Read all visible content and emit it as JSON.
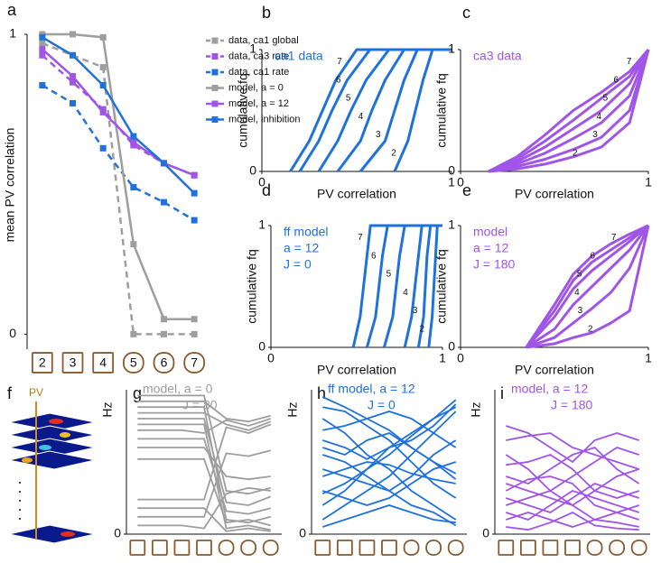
{
  "chart_data": [
    {
      "type": "line",
      "panel": "a",
      "ylabel": "mean PV correlation",
      "categories": [
        "2",
        "3",
        "4",
        "5",
        "6",
        "7"
      ],
      "ylim": [
        -0.05,
        1
      ],
      "yticks": [
        0,
        1
      ],
      "legend": "upper right",
      "series": [
        {
          "name": "data, ca1 global",
          "color": "#9e9e9e",
          "dashed": true,
          "values": [
            0.97,
            0.93,
            0.89,
            0.0,
            0.0,
            0.0
          ]
        },
        {
          "name": "data, ca3 rate",
          "color": "#a055e8",
          "dashed": true,
          "values": [
            0.93,
            0.84,
            0.75,
            0.63,
            0.57,
            0.53
          ]
        },
        {
          "name": "data, ca1 rate",
          "color": "#1f72dc",
          "dashed": true,
          "values": [
            0.83,
            0.77,
            0.62,
            0.49,
            0.44,
            0.38
          ]
        },
        {
          "name": "model, a = 0",
          "color": "#9e9e9e",
          "dashed": false,
          "values": [
            1.0,
            1.0,
            0.99,
            0.3,
            0.05,
            0.05
          ]
        },
        {
          "name": "model, a = 12",
          "color": "#a055e8",
          "dashed": false,
          "values": [
            0.95,
            0.86,
            0.74,
            0.64,
            0.57,
            0.53
          ]
        },
        {
          "name": "model, inhibition",
          "color": "#1f72dc",
          "dashed": false,
          "values": [
            0.99,
            0.93,
            0.83,
            0.66,
            0.57,
            0.47
          ]
        }
      ]
    },
    {
      "type": "cdf",
      "panel": "b",
      "annotations": [
        "ca1 data"
      ],
      "color": "#1f72dc",
      "xlabel": "PV correlation",
      "ylabel": "cumulative fq",
      "xlim": [
        0,
        1
      ],
      "ylim": [
        0,
        1
      ],
      "xticks": [
        0,
        1
      ],
      "yticks": [
        0,
        1
      ],
      "series": [
        {
          "name": "7",
          "x": [
            0.15,
            0.25,
            0.32,
            0.39,
            0.5,
            1
          ],
          "values": [
            0,
            0.25,
            0.5,
            0.75,
            1,
            1
          ]
        },
        {
          "name": "6",
          "x": [
            0.2,
            0.3,
            0.37,
            0.45,
            0.57,
            1
          ],
          "values": [
            0,
            0.25,
            0.5,
            0.75,
            1,
            1
          ]
        },
        {
          "name": "5",
          "x": [
            0.3,
            0.4,
            0.47,
            0.55,
            0.67,
            1
          ],
          "values": [
            0,
            0.25,
            0.5,
            0.75,
            1,
            1
          ]
        },
        {
          "name": "4",
          "x": [
            0.4,
            0.52,
            0.58,
            0.65,
            0.75,
            1
          ],
          "values": [
            0,
            0.25,
            0.5,
            0.75,
            1,
            1
          ]
        },
        {
          "name": "3",
          "x": [
            0.52,
            0.65,
            0.7,
            0.75,
            0.82,
            1
          ],
          "values": [
            0,
            0.25,
            0.5,
            0.75,
            1,
            1
          ]
        },
        {
          "name": "2",
          "x": [
            0.7,
            0.77,
            0.81,
            0.85,
            0.9,
            1
          ],
          "values": [
            0,
            0.25,
            0.5,
            0.75,
            1,
            1
          ]
        }
      ]
    },
    {
      "type": "cdf",
      "panel": "c",
      "annotations": [
        "ca3 data"
      ],
      "color": "#a055e8",
      "xlabel": "PV correlation",
      "ylabel": "cumulative fq",
      "xlim": [
        0,
        1
      ],
      "ylim": [
        0,
        1
      ],
      "xticks": [
        0,
        1
      ],
      "yticks": [
        0,
        1
      ],
      "series": [
        {
          "name": "7",
          "x": [
            0.15,
            0.3,
            0.45,
            0.6,
            0.75,
            0.9,
            1
          ],
          "values": [
            0,
            0.12,
            0.3,
            0.5,
            0.65,
            0.82,
            1
          ]
        },
        {
          "name": "6",
          "x": [
            0.15,
            0.3,
            0.45,
            0.6,
            0.75,
            0.9,
            1
          ],
          "values": [
            0,
            0.1,
            0.25,
            0.42,
            0.6,
            0.78,
            1
          ]
        },
        {
          "name": "5",
          "x": [
            0.15,
            0.3,
            0.45,
            0.6,
            0.75,
            0.9,
            1
          ],
          "values": [
            0,
            0.08,
            0.2,
            0.35,
            0.5,
            0.72,
            1
          ]
        },
        {
          "name": "4",
          "x": [
            0.15,
            0.3,
            0.45,
            0.6,
            0.75,
            0.9,
            1
          ],
          "values": [
            0,
            0.06,
            0.15,
            0.27,
            0.4,
            0.62,
            1
          ]
        },
        {
          "name": "3",
          "x": [
            0.15,
            0.3,
            0.45,
            0.6,
            0.75,
            0.9,
            1
          ],
          "values": [
            0,
            0.04,
            0.1,
            0.18,
            0.28,
            0.5,
            1
          ]
        },
        {
          "name": "2",
          "x": [
            0.15,
            0.3,
            0.45,
            0.6,
            0.75,
            0.9,
            1
          ],
          "values": [
            0,
            0.02,
            0.06,
            0.12,
            0.2,
            0.4,
            1
          ]
        }
      ]
    },
    {
      "type": "cdf",
      "panel": "d",
      "annotations": [
        "ff model",
        "a = 12",
        "J = 0"
      ],
      "color": "#1f72dc",
      "xlabel": "PV correlation",
      "ylabel": "cumulative fq",
      "xlim": [
        0,
        1
      ],
      "ylim": [
        0,
        1
      ],
      "xticks": [
        0,
        1
      ],
      "yticks": [
        0,
        1
      ],
      "series": [
        {
          "name": "7",
          "x": [
            0.48,
            0.52,
            0.54,
            0.56,
            0.58,
            1
          ],
          "values": [
            0,
            0.25,
            0.5,
            0.75,
            1,
            1
          ]
        },
        {
          "name": "6",
          "x": [
            0.56,
            0.61,
            0.63,
            0.65,
            0.68,
            1
          ],
          "values": [
            0,
            0.25,
            0.5,
            0.75,
            1,
            1
          ]
        },
        {
          "name": "5",
          "x": [
            0.66,
            0.71,
            0.73,
            0.75,
            0.78,
            1
          ],
          "values": [
            0,
            0.25,
            0.5,
            0.75,
            1,
            1
          ]
        },
        {
          "name": "4",
          "x": [
            0.78,
            0.82,
            0.84,
            0.86,
            0.88,
            1
          ],
          "values": [
            0,
            0.25,
            0.5,
            0.75,
            1,
            1
          ]
        },
        {
          "name": "3",
          "x": [
            0.86,
            0.89,
            0.9,
            0.91,
            0.93,
            1
          ],
          "values": [
            0,
            0.25,
            0.5,
            0.75,
            1,
            1
          ]
        },
        {
          "name": "2",
          "x": [
            0.92,
            0.94,
            0.95,
            0.96,
            0.97,
            1
          ],
          "values": [
            0,
            0.25,
            0.5,
            0.75,
            1,
            1
          ]
        }
      ]
    },
    {
      "type": "cdf",
      "panel": "e",
      "annotations": [
        "model",
        "a = 12",
        "J = 180"
      ],
      "color": "#a055e8",
      "xlabel": "PV correlation",
      "ylabel": "cumulative fq",
      "xlim": [
        0,
        1
      ],
      "ylim": [
        0,
        1
      ],
      "xticks": [
        0,
        1
      ],
      "yticks": [
        0,
        1
      ],
      "series": [
        {
          "name": "7",
          "x": [
            0.35,
            0.5,
            0.6,
            0.7,
            0.8,
            0.9,
            1
          ],
          "values": [
            0,
            0.35,
            0.6,
            0.75,
            0.85,
            0.93,
            1
          ]
        },
        {
          "name": "6",
          "x": [
            0.35,
            0.5,
            0.6,
            0.7,
            0.8,
            0.9,
            1
          ],
          "values": [
            0,
            0.3,
            0.55,
            0.7,
            0.8,
            0.9,
            1
          ]
        },
        {
          "name": "5",
          "x": [
            0.35,
            0.5,
            0.6,
            0.7,
            0.8,
            0.9,
            1
          ],
          "values": [
            0,
            0.25,
            0.48,
            0.63,
            0.75,
            0.87,
            1
          ]
        },
        {
          "name": "4",
          "x": [
            0.35,
            0.5,
            0.6,
            0.7,
            0.8,
            0.9,
            1
          ],
          "values": [
            0,
            0.15,
            0.35,
            0.5,
            0.65,
            0.8,
            1
          ]
        },
        {
          "name": "3",
          "x": [
            0.35,
            0.5,
            0.6,
            0.7,
            0.8,
            0.9,
            1
          ],
          "values": [
            0,
            0.08,
            0.2,
            0.32,
            0.45,
            0.65,
            1
          ]
        },
        {
          "name": "2",
          "x": [
            0.35,
            0.5,
            0.6,
            0.7,
            0.8,
            0.9,
            1
          ],
          "values": [
            0,
            0.03,
            0.08,
            0.12,
            0.2,
            0.3,
            1
          ]
        }
      ]
    },
    {
      "type": "line",
      "panel": "g",
      "annotations": [
        "model, a = 0",
        "J = 80"
      ],
      "color": "#9e9e9e",
      "ylabel": "Hz",
      "categories": [
        null,
        null,
        null,
        null,
        null,
        null,
        null
      ],
      "ylim": [
        0,
        10
      ],
      "yticks": [
        0
      ],
      "series": [
        {
          "values": [
            9.6,
            9.6,
            9.6,
            9.6,
            3.0,
            2.8,
            3.2
          ]
        },
        {
          "values": [
            9.2,
            9.2,
            9.2,
            9.2,
            8.0,
            7.8,
            8.2
          ]
        },
        {
          "values": [
            8.8,
            8.8,
            8.8,
            8.8,
            1.0,
            0.8,
            1.2
          ]
        },
        {
          "values": [
            8.4,
            8.4,
            8.4,
            8.4,
            7.6,
            7.2,
            7.8
          ]
        },
        {
          "values": [
            8.0,
            8.0,
            8.0,
            8.0,
            2.2,
            2.0,
            2.6
          ]
        },
        {
          "values": [
            7.6,
            7.6,
            7.6,
            7.6,
            0.4,
            0.6,
            0.3
          ]
        },
        {
          "values": [
            7.2,
            7.2,
            7.2,
            7.0,
            7.9,
            7.5,
            8.0
          ]
        },
        {
          "values": [
            6.6,
            6.6,
            6.6,
            6.6,
            1.6,
            1.4,
            1.8
          ]
        },
        {
          "values": [
            6.0,
            6.0,
            6.0,
            6.0,
            4.0,
            3.8,
            4.0
          ]
        },
        {
          "values": [
            5.2,
            5.2,
            5.2,
            5.2,
            0.8,
            1.0,
            0.6
          ]
        },
        {
          "values": [
            2.4,
            2.4,
            2.4,
            2.4,
            7.4,
            7.0,
            7.6
          ]
        },
        {
          "values": [
            1.8,
            1.8,
            1.8,
            1.8,
            0.2,
            0.4,
            0.2
          ]
        },
        {
          "values": [
            1.2,
            1.2,
            1.2,
            1.2,
            5.6,
            5.4,
            5.8
          ]
        },
        {
          "values": [
            0.6,
            0.6,
            0.6,
            0.4,
            2.8,
            3.2,
            3.0
          ]
        }
      ]
    },
    {
      "type": "line",
      "panel": "h",
      "annotations": [
        "ff model, a = 12",
        "J = 0"
      ],
      "color": "#1f72dc",
      "ylabel": "Hz",
      "categories": [
        null,
        null,
        null,
        null,
        null,
        null,
        null
      ],
      "ylim": [
        0,
        10
      ],
      "yticks": [
        0
      ],
      "series": [
        {
          "values": [
            9.5,
            8.8,
            8.0,
            7.2,
            6.0,
            5.0,
            4.2
          ]
        },
        {
          "values": [
            2.0,
            3.0,
            4.5,
            5.5,
            6.8,
            8.0,
            9.3
          ]
        },
        {
          "values": [
            6.5,
            6.0,
            5.2,
            6.0,
            7.0,
            8.0,
            8.8
          ]
        },
        {
          "values": [
            8.0,
            7.0,
            5.5,
            4.5,
            3.0,
            2.0,
            1.0
          ]
        },
        {
          "values": [
            4.0,
            4.5,
            5.0,
            4.8,
            4.2,
            3.8,
            3.5
          ]
        },
        {
          "values": [
            1.0,
            2.0,
            3.0,
            4.0,
            5.5,
            7.0,
            8.5
          ]
        },
        {
          "values": [
            7.2,
            7.5,
            8.0,
            8.5,
            8.0,
            7.0,
            6.0
          ]
        },
        {
          "values": [
            3.0,
            2.5,
            2.0,
            2.5,
            3.5,
            4.5,
            5.0
          ]
        },
        {
          "values": [
            5.5,
            5.0,
            4.0,
            3.0,
            2.0,
            1.5,
            0.6
          ]
        },
        {
          "values": [
            0.5,
            1.0,
            1.5,
            2.0,
            1.5,
            1.0,
            0.8
          ]
        },
        {
          "values": [
            8.8,
            8.5,
            7.5,
            6.5,
            5.0,
            3.5,
            2.5
          ]
        },
        {
          "values": [
            2.8,
            3.5,
            4.5,
            6.0,
            6.5,
            7.5,
            9.0
          ]
        },
        {
          "values": [
            6.0,
            5.5,
            6.5,
            7.0,
            6.0,
            5.0,
            3.8
          ]
        },
        {
          "values": [
            4.5,
            4.0,
            3.5,
            3.0,
            4.0,
            5.5,
            6.5
          ]
        }
      ]
    },
    {
      "type": "line",
      "panel": "i",
      "annotations": [
        "model, a = 12",
        "J = 180"
      ],
      "color": "#a055e8",
      "ylabel": "Hz",
      "categories": [
        null,
        null,
        null,
        null,
        null,
        null,
        null
      ],
      "ylim": [
        0,
        10
      ],
      "yticks": [
        0
      ],
      "series": [
        {
          "values": [
            7.5,
            7.0,
            6.0,
            5.0,
            6.5,
            7.0,
            6.5
          ]
        },
        {
          "values": [
            6.5,
            6.8,
            7.0,
            6.0,
            5.5,
            5.0,
            4.5
          ]
        },
        {
          "values": [
            5.5,
            4.5,
            3.0,
            4.0,
            5.0,
            6.0,
            5.5
          ]
        },
        {
          "values": [
            4.8,
            5.0,
            5.5,
            4.5,
            3.0,
            2.5,
            3.0
          ]
        },
        {
          "values": [
            4.0,
            3.5,
            4.5,
            5.5,
            6.0,
            4.5,
            3.5
          ]
        },
        {
          "values": [
            3.5,
            3.0,
            2.5,
            2.0,
            3.0,
            4.0,
            4.5
          ]
        },
        {
          "values": [
            3.0,
            3.8,
            4.0,
            3.5,
            2.0,
            1.5,
            2.0
          ]
        },
        {
          "values": [
            2.5,
            2.0,
            1.5,
            2.5,
            3.5,
            3.0,
            2.5
          ]
        },
        {
          "values": [
            2.0,
            2.5,
            3.0,
            2.0,
            1.0,
            1.5,
            1.0
          ]
        },
        {
          "values": [
            1.5,
            1.0,
            2.0,
            3.0,
            2.5,
            2.0,
            1.5
          ]
        },
        {
          "values": [
            1.0,
            1.5,
            1.0,
            0.5,
            1.0,
            0.8,
            0.5
          ]
        },
        {
          "values": [
            0.5,
            0.3,
            0.8,
            1.5,
            0.6,
            0.4,
            0.3
          ]
        }
      ]
    }
  ],
  "diagram_f": {
    "panel": "f",
    "label": "PV"
  }
}
